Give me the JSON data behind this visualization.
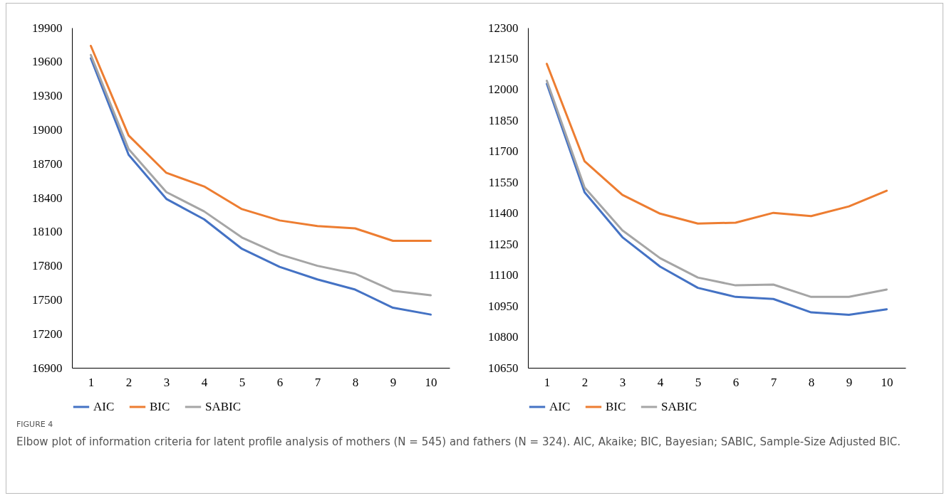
{
  "chart_data": [
    {
      "type": "line",
      "categories": [
        "1",
        "2",
        "3",
        "4",
        "5",
        "6",
        "7",
        "8",
        "9",
        "10"
      ],
      "series": [
        {
          "name": "AIC",
          "color": "#4472c4",
          "values": [
            19630,
            18780,
            18390,
            18210,
            17950,
            17790,
            17680,
            17590,
            17430,
            17370
          ]
        },
        {
          "name": "BIC",
          "color": "#ed7d31",
          "values": [
            19740,
            18950,
            18620,
            18500,
            18300,
            18200,
            18150,
            18130,
            18020,
            18020
          ]
        },
        {
          "name": "SABIC",
          "color": "#a5a5a5",
          "values": [
            19660,
            18830,
            18450,
            18280,
            18050,
            17900,
            17800,
            17730,
            17580,
            17540
          ]
        }
      ],
      "ylim": [
        16900,
        19900
      ],
      "yticks": [
        16900,
        17200,
        17500,
        17800,
        18100,
        18400,
        18700,
        19000,
        19300,
        19600,
        19900
      ],
      "grid": false,
      "legend": "bottom",
      "annotations": [
        "FIGURE 4",
        "Elbow plot of information criteria for latent profile analysis of mothers (N = 545) and fathers (N = 324). AIC, Akaike; BIC, Bayesian; SABIC, Sample-Size Adjusted BIC."
      ]
    },
    {
      "type": "line",
      "categories": [
        "1",
        "2",
        "3",
        "4",
        "5",
        "6",
        "7",
        "8",
        "9",
        "10"
      ],
      "series": [
        {
          "name": "AIC",
          "color": "#4472c4",
          "values": [
            12028,
            11502,
            11284,
            11141,
            11038,
            10994,
            10984,
            10919,
            10907,
            10934
          ]
        },
        {
          "name": "BIC",
          "color": "#ed7d31",
          "values": [
            12125,
            11652,
            11489,
            11398,
            11350,
            11354,
            11402,
            11386,
            11433,
            11509
          ]
        },
        {
          "name": "SABIC",
          "color": "#a5a5a5",
          "values": [
            12043,
            11525,
            11317,
            11182,
            11088,
            11050,
            11054,
            10994,
            10994,
            11030
          ]
        }
      ],
      "ylim": [
        10650,
        12300
      ],
      "yticks": [
        10650,
        10800,
        10950,
        11100,
        11250,
        11400,
        11550,
        11700,
        11850,
        12000,
        12150,
        12300
      ],
      "grid": false,
      "legend": "bottom"
    }
  ]
}
